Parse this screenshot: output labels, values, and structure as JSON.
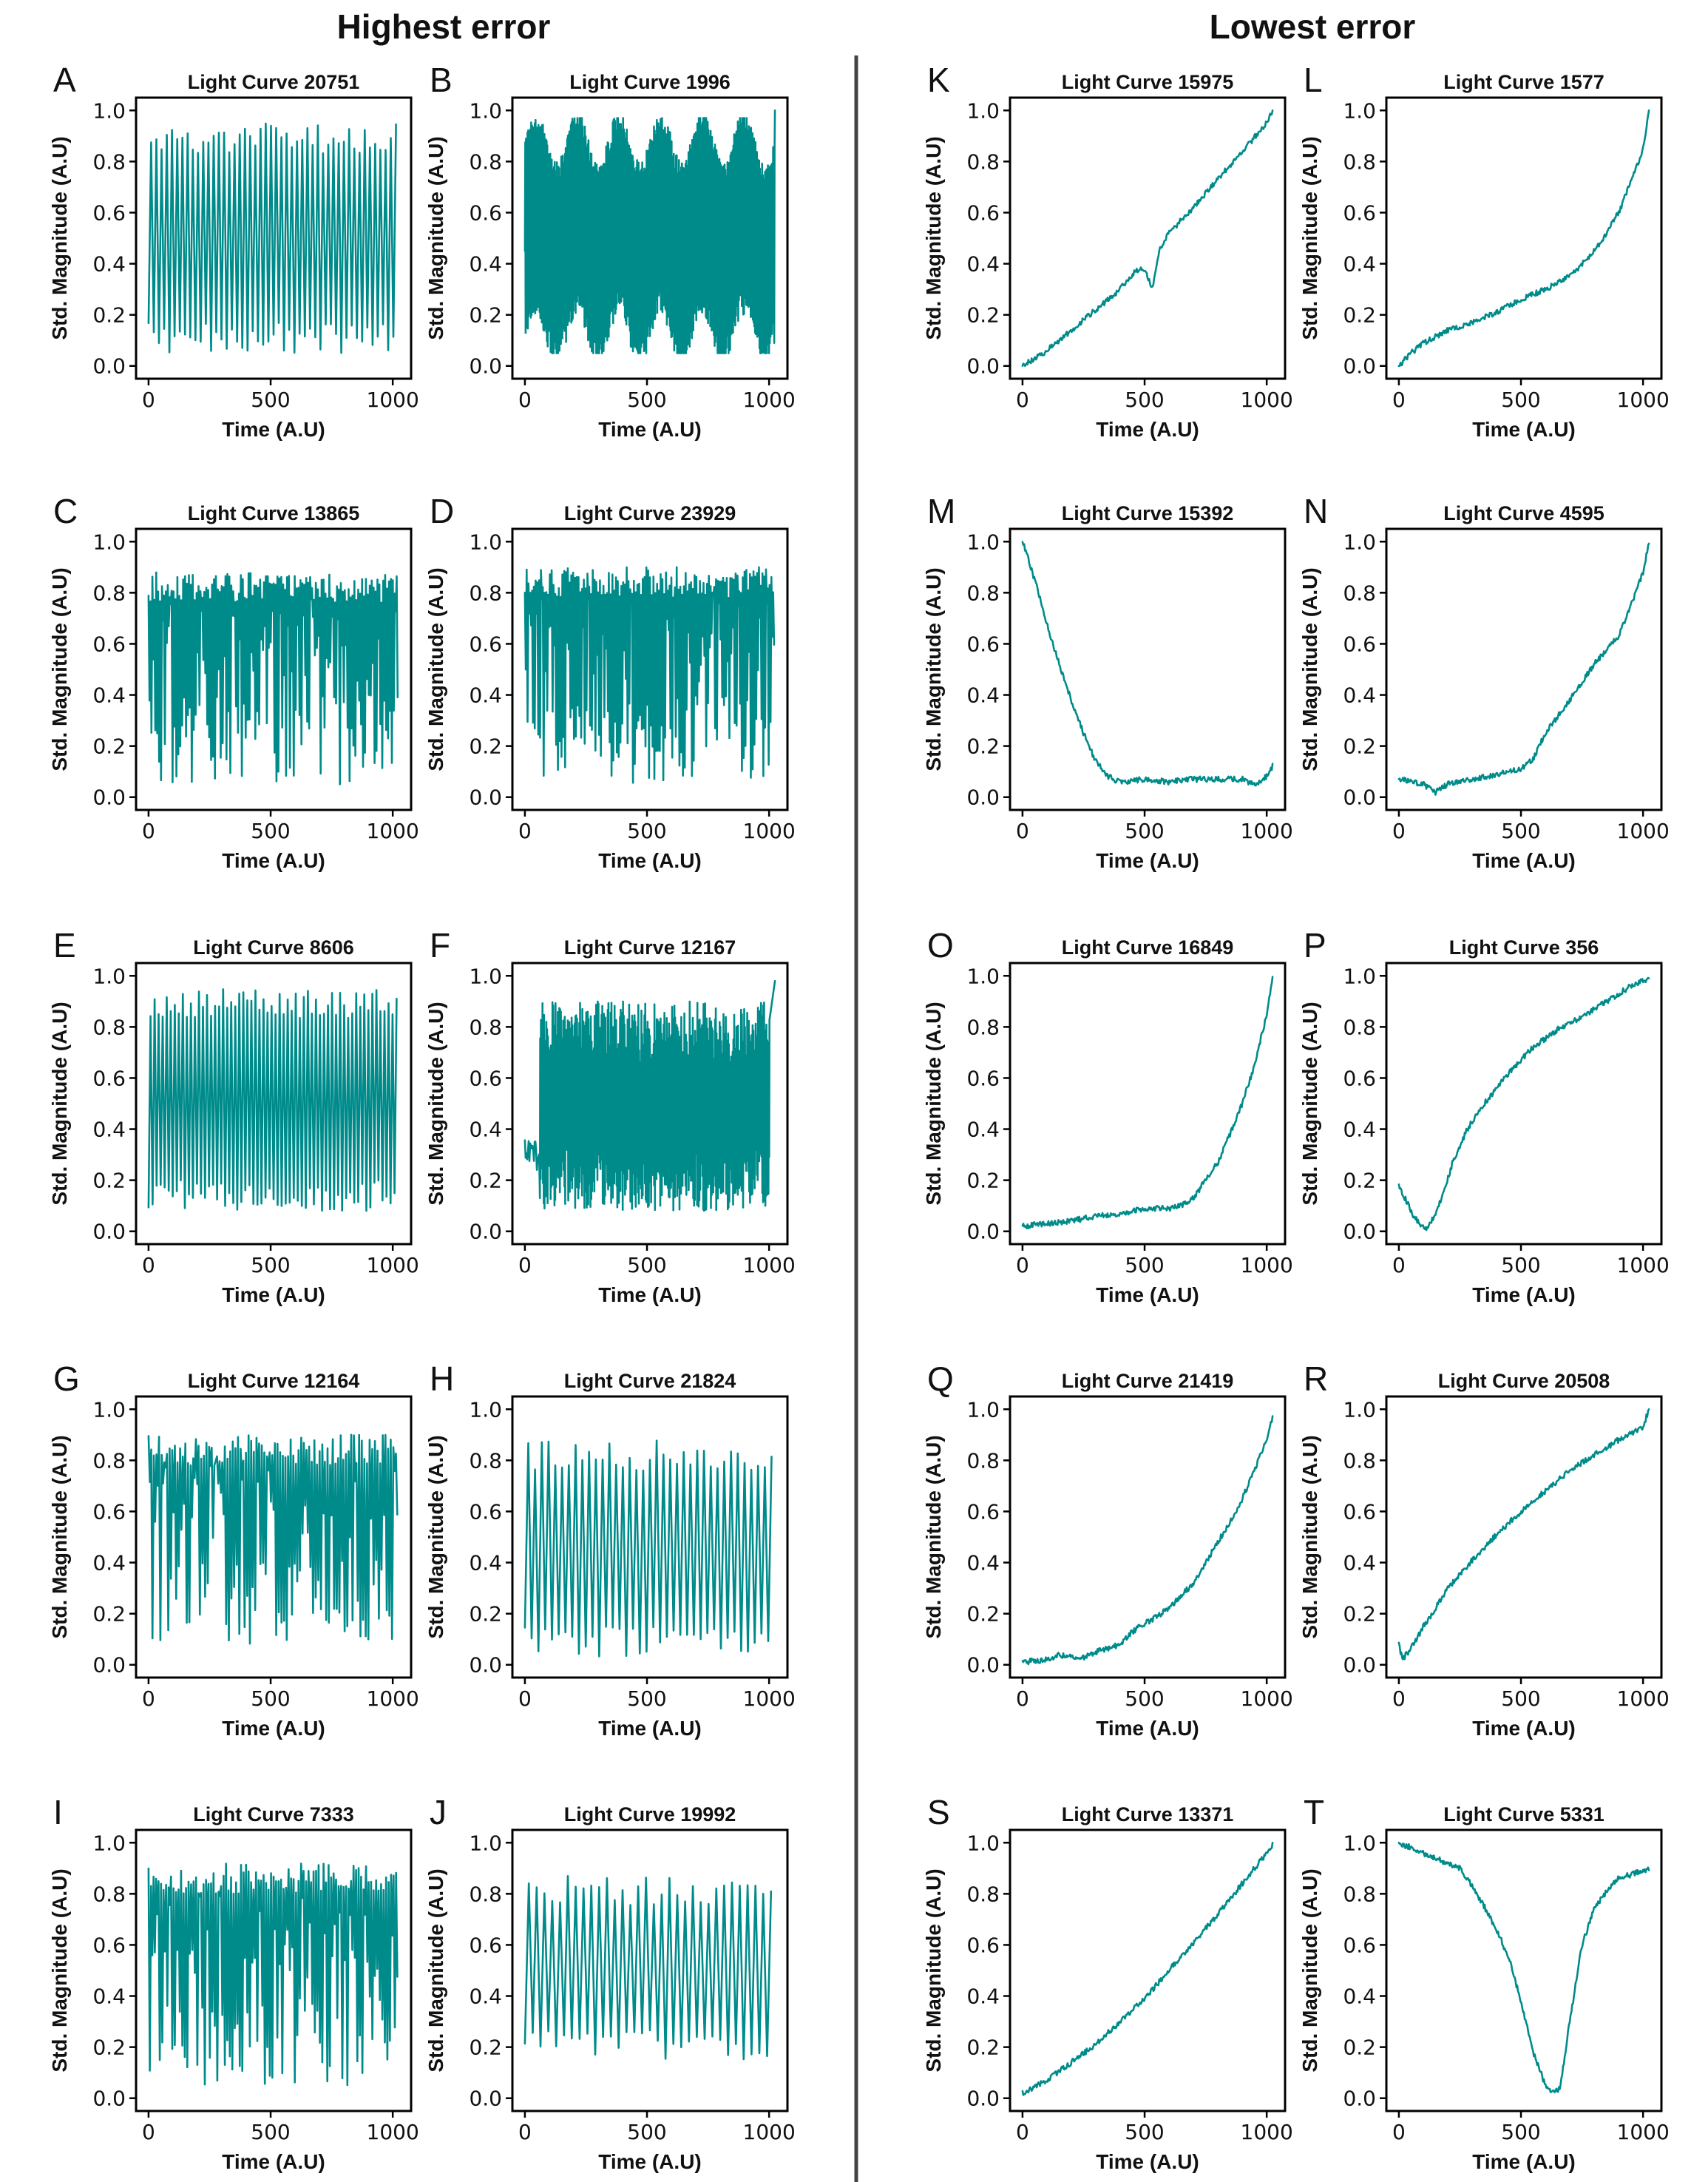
{
  "figure": {
    "left_header": "Highest error",
    "right_header": "Lowest error",
    "line_color": "#008B8B",
    "divider_color": "#444444"
  },
  "chart_data": [
    {
      "panel": "A",
      "type": "line",
      "title": "Light Curve 20751",
      "xlabel": "Time (A.U)",
      "ylabel": "Std. Magnitude (A.U)",
      "xlim": [
        0,
        1024
      ],
      "ylim": [
        0,
        1
      ],
      "xticks": [
        0,
        500,
        1000
      ],
      "yticks": [
        0.0,
        0.2,
        0.4,
        0.6,
        0.8,
        1.0
      ],
      "series": [
        {
          "shape": "periodic_oscillation",
          "cycles": 48,
          "low": 0.05,
          "high": 0.95
        }
      ]
    },
    {
      "panel": "B",
      "type": "line",
      "title": "Light Curve 1996",
      "xlabel": "Time (A.U)",
      "ylabel": "Std. Magnitude (A.U)",
      "xlim": [
        0,
        1024
      ],
      "ylim": [
        0,
        1
      ],
      "xticks": [
        0,
        500,
        1000
      ],
      "yticks": [
        0.0,
        0.2,
        0.4,
        0.6,
        0.8,
        1.0
      ],
      "series": [
        {
          "shape": "dense_modulated_oscillation",
          "cycles": 340,
          "low": 0.05,
          "high": 0.97,
          "modulation_periods": 6,
          "end_value": 1.0
        }
      ]
    },
    {
      "panel": "C",
      "type": "line",
      "title": "Light Curve 13865",
      "xlabel": "Time (A.U)",
      "ylabel": "Std. Magnitude (A.U)",
      "xlim": [
        0,
        1024
      ],
      "ylim": [
        0,
        1
      ],
      "xticks": [
        0,
        500,
        1000
      ],
      "yticks": [
        0.0,
        0.2,
        0.4,
        0.6,
        0.8,
        1.0
      ],
      "series": [
        {
          "shape": "irregular_dropouts",
          "cycles": 130,
          "low": 0.05,
          "high": 0.88
        }
      ]
    },
    {
      "panel": "D",
      "type": "line",
      "title": "Light Curve 23929",
      "xlabel": "Time (A.U)",
      "ylabel": "Std. Magnitude (A.U)",
      "xlim": [
        0,
        1024
      ],
      "ylim": [
        0,
        1
      ],
      "xticks": [
        0,
        500,
        1000
      ],
      "yticks": [
        0.0,
        0.2,
        0.4,
        0.6,
        0.8,
        1.0
      ],
      "series": [
        {
          "shape": "irregular_dropouts",
          "cycles": 140,
          "low": 0.05,
          "high": 0.9
        }
      ]
    },
    {
      "panel": "E",
      "type": "line",
      "title": "Light Curve 8606",
      "xlabel": "Time (A.U)",
      "ylabel": "Std. Magnitude (A.U)",
      "xlim": [
        0,
        1024
      ],
      "ylim": [
        0,
        1
      ],
      "xticks": [
        0,
        500,
        1000
      ],
      "yticks": [
        0.0,
        0.2,
        0.4,
        0.6,
        0.8,
        1.0
      ],
      "series": [
        {
          "shape": "periodic_oscillation",
          "cycles": 62,
          "low": 0.08,
          "high": 0.95
        }
      ]
    },
    {
      "panel": "F",
      "type": "line",
      "title": "Light Curve 12167",
      "xlabel": "Time (A.U)",
      "ylabel": "Std. Magnitude (A.U)",
      "xlim": [
        0,
        1024
      ],
      "ylim": [
        0,
        1
      ],
      "xticks": [
        0,
        500,
        1000
      ],
      "yticks": [
        0.0,
        0.2,
        0.4,
        0.6,
        0.8,
        1.0
      ],
      "series": [
        {
          "shape": "dense_noise_band",
          "cycles": 300,
          "low": 0.08,
          "high": 0.9,
          "start_value": 0.3,
          "end_value": 0.98
        }
      ]
    },
    {
      "panel": "G",
      "type": "line",
      "title": "Light Curve 12164",
      "xlabel": "Time (A.U)",
      "ylabel": "Std. Magnitude (A.U)",
      "xlim": [
        0,
        1024
      ],
      "ylim": [
        0,
        1
      ],
      "xticks": [
        0,
        500,
        1000
      ],
      "yticks": [
        0.0,
        0.2,
        0.4,
        0.6,
        0.8,
        1.0
      ],
      "series": [
        {
          "shape": "irregular_dropouts",
          "cycles": 95,
          "low": 0.08,
          "high": 0.9
        }
      ]
    },
    {
      "panel": "H",
      "type": "line",
      "title": "Light Curve 21824",
      "xlabel": "Time (A.U)",
      "ylabel": "Std. Magnitude (A.U)",
      "xlim": [
        0,
        1024
      ],
      "ylim": [
        0,
        1
      ],
      "xticks": [
        0,
        500,
        1000
      ],
      "yticks": [
        0.0,
        0.2,
        0.4,
        0.6,
        0.8,
        1.0
      ],
      "series": [
        {
          "shape": "periodic_oscillation",
          "cycles": 37,
          "low": 0.03,
          "high": 0.88
        }
      ]
    },
    {
      "panel": "I",
      "type": "line",
      "title": "Light Curve 7333",
      "xlabel": "Time (A.U)",
      "ylabel": "Std. Magnitude (A.U)",
      "xlim": [
        0,
        1024
      ],
      "ylim": [
        0,
        1
      ],
      "xticks": [
        0,
        500,
        1000
      ],
      "yticks": [
        0.0,
        0.2,
        0.4,
        0.6,
        0.8,
        1.0
      ],
      "series": [
        {
          "shape": "irregular_dropouts",
          "cycles": 100,
          "low": 0.05,
          "high": 0.92
        }
      ]
    },
    {
      "panel": "J",
      "type": "line",
      "title": "Light Curve 19992",
      "xlabel": "Time (A.U)",
      "ylabel": "Std. Magnitude (A.U)",
      "xlim": [
        0,
        1024
      ],
      "ylim": [
        0,
        1
      ],
      "xticks": [
        0,
        500,
        1000
      ],
      "yticks": [
        0.0,
        0.2,
        0.4,
        0.6,
        0.8,
        1.0
      ],
      "series": [
        {
          "shape": "periodic_oscillation",
          "cycles": 32,
          "low": 0.15,
          "high": 0.87
        }
      ]
    },
    {
      "panel": "K",
      "type": "line",
      "title": "Light Curve 15975",
      "xlabel": "Time (A.U)",
      "ylabel": "Std. Magnitude (A.U)",
      "xlim": [
        0,
        1024
      ],
      "ylim": [
        0,
        1
      ],
      "xticks": [
        0,
        500,
        1000
      ],
      "yticks": [
        0.0,
        0.2,
        0.4,
        0.6,
        0.8,
        1.0
      ],
      "series": [
        {
          "x": [
            0,
            100,
            200,
            300,
            400,
            460,
            500,
            530,
            560,
            600,
            700,
            800,
            900,
            1000,
            1024
          ],
          "y": [
            0.0,
            0.06,
            0.14,
            0.22,
            0.3,
            0.37,
            0.38,
            0.3,
            0.45,
            0.52,
            0.62,
            0.73,
            0.84,
            0.95,
            1.0
          ]
        }
      ]
    },
    {
      "panel": "L",
      "type": "line",
      "title": "Light Curve 1577",
      "xlabel": "Time (A.U)",
      "ylabel": "Std. Magnitude (A.U)",
      "xlim": [
        0,
        1024
      ],
      "ylim": [
        0,
        1
      ],
      "xticks": [
        0,
        500,
        1000
      ],
      "yticks": [
        0.0,
        0.2,
        0.4,
        0.6,
        0.8,
        1.0
      ],
      "series": [
        {
          "x": [
            0,
            50,
            100,
            200,
            300,
            400,
            500,
            600,
            700,
            800,
            850,
            900,
            950,
            1000,
            1024
          ],
          "y": [
            0.0,
            0.05,
            0.09,
            0.14,
            0.17,
            0.21,
            0.26,
            0.3,
            0.35,
            0.45,
            0.52,
            0.6,
            0.72,
            0.85,
            1.0
          ]
        }
      ]
    },
    {
      "panel": "M",
      "type": "line",
      "title": "Light Curve 15392",
      "xlabel": "Time (A.U)",
      "ylabel": "Std. Magnitude (A.U)",
      "xlim": [
        0,
        1024
      ],
      "ylim": [
        0,
        1
      ],
      "xticks": [
        0,
        500,
        1000
      ],
      "yticks": [
        0.0,
        0.2,
        0.4,
        0.6,
        0.8,
        1.0
      ],
      "series": [
        {
          "x": [
            0,
            50,
            100,
            150,
            200,
            250,
            300,
            350,
            400,
            500,
            600,
            700,
            800,
            900,
            950,
            1000,
            1024
          ],
          "y": [
            1.0,
            0.85,
            0.68,
            0.52,
            0.38,
            0.25,
            0.14,
            0.08,
            0.06,
            0.07,
            0.06,
            0.07,
            0.07,
            0.07,
            0.05,
            0.08,
            0.12
          ]
        }
      ]
    },
    {
      "panel": "N",
      "type": "line",
      "title": "Light Curve 4595",
      "xlabel": "Time (A.U)",
      "ylabel": "Std. Magnitude (A.U)",
      "xlim": [
        0,
        1024
      ],
      "ylim": [
        0,
        1
      ],
      "xticks": [
        0,
        500,
        1000
      ],
      "yticks": [
        0.0,
        0.2,
        0.4,
        0.6,
        0.8,
        1.0
      ],
      "series": [
        {
          "x": [
            0,
            50,
            100,
            150,
            200,
            300,
            400,
            500,
            550,
            600,
            700,
            800,
            900,
            950,
            1000,
            1024
          ],
          "y": [
            0.07,
            0.06,
            0.05,
            0.02,
            0.05,
            0.07,
            0.09,
            0.11,
            0.15,
            0.25,
            0.38,
            0.52,
            0.63,
            0.75,
            0.88,
            1.0
          ]
        }
      ]
    },
    {
      "panel": "O",
      "type": "line",
      "title": "Light Curve 16849",
      "xlabel": "Time (A.U)",
      "ylabel": "Std. Magnitude (A.U)",
      "xlim": [
        0,
        1024
      ],
      "ylim": [
        0,
        1
      ],
      "xticks": [
        0,
        500,
        1000
      ],
      "yticks": [
        0.0,
        0.2,
        0.4,
        0.6,
        0.8,
        1.0
      ],
      "series": [
        {
          "x": [
            0,
            100,
            200,
            300,
            400,
            500,
            600,
            650,
            700,
            750,
            800,
            850,
            900,
            950,
            1000,
            1024
          ],
          "y": [
            0.02,
            0.03,
            0.04,
            0.06,
            0.07,
            0.09,
            0.09,
            0.1,
            0.13,
            0.2,
            0.27,
            0.38,
            0.5,
            0.65,
            0.85,
            1.0
          ]
        }
      ]
    },
    {
      "panel": "P",
      "type": "line",
      "title": "Light Curve 356",
      "xlabel": "Time (A.U)",
      "ylabel": "Std. Magnitude (A.U)",
      "xlim": [
        0,
        1024
      ],
      "ylim": [
        0,
        1
      ],
      "xticks": [
        0,
        500,
        1000
      ],
      "yticks": [
        0.0,
        0.2,
        0.4,
        0.6,
        0.8,
        1.0
      ],
      "series": [
        {
          "x": [
            0,
            30,
            60,
            90,
            110,
            140,
            180,
            220,
            280,
            350,
            450,
            550,
            650,
            750,
            850,
            950,
            1024
          ],
          "y": [
            0.18,
            0.12,
            0.06,
            0.02,
            0.01,
            0.05,
            0.14,
            0.27,
            0.4,
            0.5,
            0.62,
            0.72,
            0.79,
            0.84,
            0.9,
            0.96,
            0.99
          ]
        }
      ]
    },
    {
      "panel": "Q",
      "type": "line",
      "title": "Light Curve 21419",
      "xlabel": "Time (A.U)",
      "ylabel": "Std. Magnitude (A.U)",
      "xlim": [
        0,
        1024
      ],
      "ylim": [
        0,
        1
      ],
      "xticks": [
        0,
        500,
        1000
      ],
      "yticks": [
        0.0,
        0.2,
        0.4,
        0.6,
        0.8,
        1.0
      ],
      "series": [
        {
          "x": [
            0,
            100,
            150,
            200,
            250,
            300,
            400,
            450,
            500,
            600,
            700,
            750,
            800,
            850,
            900,
            950,
            1000,
            1024
          ],
          "y": [
            0.01,
            0.02,
            0.04,
            0.03,
            0.03,
            0.05,
            0.08,
            0.13,
            0.16,
            0.22,
            0.32,
            0.4,
            0.48,
            0.56,
            0.65,
            0.76,
            0.88,
            0.97
          ]
        }
      ]
    },
    {
      "panel": "R",
      "type": "line",
      "title": "Light Curve 20508",
      "xlabel": "Time (A.U)",
      "ylabel": "Std. Magnitude (A.U)",
      "xlim": [
        0,
        1024
      ],
      "ylim": [
        0,
        1
      ],
      "xticks": [
        0,
        500,
        1000
      ],
      "yticks": [
        0.0,
        0.2,
        0.4,
        0.6,
        0.8,
        1.0
      ],
      "series": [
        {
          "x": [
            0,
            15,
            30,
            60,
            100,
            150,
            200,
            300,
            400,
            500,
            600,
            700,
            800,
            900,
            1000,
            1024
          ],
          "y": [
            0.08,
            0.02,
            0.04,
            0.08,
            0.15,
            0.22,
            0.3,
            0.41,
            0.51,
            0.6,
            0.68,
            0.76,
            0.82,
            0.88,
            0.93,
            1.0
          ]
        }
      ]
    },
    {
      "panel": "S",
      "type": "line",
      "title": "Light Curve 13371",
      "xlabel": "Time (A.U)",
      "ylabel": "Std. Magnitude (A.U)",
      "xlim": [
        0,
        1024
      ],
      "ylim": [
        0,
        1
      ],
      "xticks": [
        0,
        500,
        1000
      ],
      "yticks": [
        0.0,
        0.2,
        0.4,
        0.6,
        0.8,
        1.0
      ],
      "series": [
        {
          "x": [
            0,
            100,
            200,
            300,
            400,
            500,
            600,
            700,
            800,
            900,
            1000,
            1024
          ],
          "y": [
            0.02,
            0.07,
            0.14,
            0.21,
            0.3,
            0.39,
            0.5,
            0.61,
            0.72,
            0.84,
            0.96,
            0.99
          ]
        }
      ]
    },
    {
      "panel": "T",
      "type": "line",
      "title": "Light Curve 5331",
      "xlabel": "Time (A.U)",
      "ylabel": "Std. Magnitude (A.U)",
      "xlim": [
        0,
        1024
      ],
      "ylim": [
        0,
        1
      ],
      "xticks": [
        0,
        500,
        1000
      ],
      "yticks": [
        0.0,
        0.2,
        0.4,
        0.6,
        0.8,
        1.0
      ],
      "series": [
        {
          "x": [
            0,
            50,
            100,
            150,
            200,
            250,
            300,
            350,
            400,
            450,
            500,
            550,
            600,
            630,
            660,
            700,
            750,
            800,
            850,
            900,
            1000,
            1024
          ],
          "y": [
            1.0,
            0.98,
            0.96,
            0.94,
            0.92,
            0.9,
            0.83,
            0.75,
            0.66,
            0.55,
            0.38,
            0.18,
            0.05,
            0.02,
            0.04,
            0.3,
            0.6,
            0.74,
            0.81,
            0.86,
            0.89,
            0.9
          ]
        }
      ]
    }
  ]
}
